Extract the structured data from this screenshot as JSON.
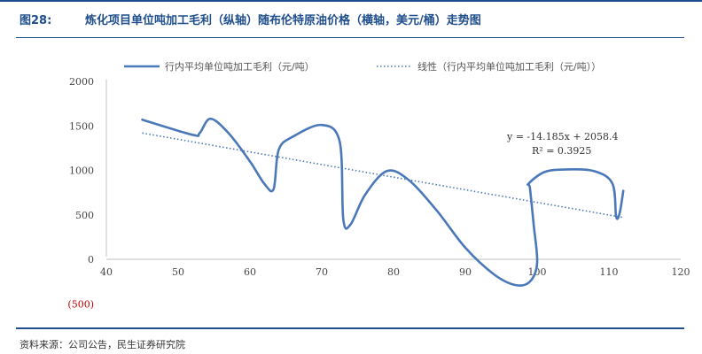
{
  "header": {
    "figure_number": "图28:",
    "title": "炼化项目单位吨加工毛利（纵轴）随布伦特原油价格（横轴，美元/桶）走势图"
  },
  "source": "资料来源：公司公告，民生证券研究院",
  "colors": {
    "series": "#4a78b8",
    "trend": "#4a78b8",
    "header": "#1f4e8c",
    "negative_tick": "#c00000"
  },
  "chart_data": {
    "type": "scatter",
    "xlim": [
      40,
      120
    ],
    "ylim": [
      -500,
      2000
    ],
    "x_ticks": [
      40,
      50,
      60,
      70,
      80,
      90,
      100,
      110,
      120
    ],
    "y_ticks": [
      2000,
      1500,
      1000,
      500,
      0,
      -500
    ],
    "y_tick_labels": [
      "2000",
      "1500",
      "1000",
      "500",
      "0",
      "(500)"
    ],
    "grid": false,
    "legend_position": "top",
    "series": [
      {
        "name": "行内平均单位吨加工毛利（元/吨）",
        "style": "smooth-line",
        "x": [
          45,
          52,
          53,
          54.5,
          57,
          60,
          62,
          63.3,
          64,
          66,
          70,
          72.5,
          73,
          74,
          76,
          79,
          82,
          86,
          90,
          94,
          97,
          99,
          100,
          99.5,
          99,
          98.8,
          101,
          104,
          108,
          110.5,
          111,
          111.5,
          112
        ],
        "y": [
          1570,
          1400,
          1420,
          1580,
          1420,
          1100,
          850,
          790,
          1230,
          1380,
          1510,
          1320,
          450,
          390,
          720,
          990,
          900,
          550,
          130,
          -170,
          -290,
          -250,
          -40,
          400,
          800,
          850,
          980,
          1010,
          990,
          850,
          480,
          520,
          770
        ]
      },
      {
        "name": "线性（行内平均单位吨加工毛利（元/吨））",
        "style": "dotted-trendline",
        "slope": -14.185,
        "intercept": 2058.4,
        "x_range": [
          45,
          112
        ]
      }
    ],
    "annotations": {
      "equation": "y = -14.185x + 2058.4",
      "r_squared": "R² = 0.3925"
    }
  }
}
